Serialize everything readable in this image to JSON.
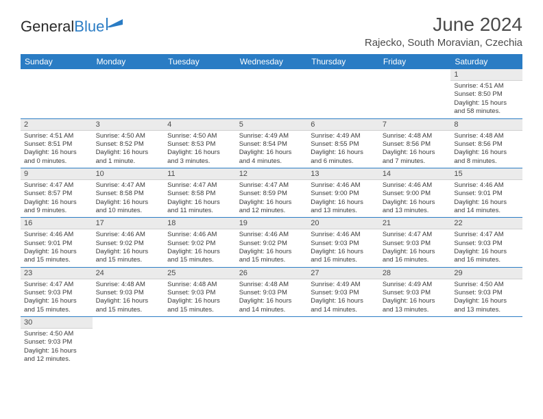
{
  "brand": {
    "general": "General",
    "blue": "Blue"
  },
  "title": "June 2024",
  "location": "Rajecko, South Moravian, Czechia",
  "colors": {
    "header_bg": "#2a7cc4",
    "header_text": "#ffffff",
    "daynum_bg": "#ebebeb",
    "text": "#3a3a3a",
    "border": "#2a7cc4"
  },
  "weekdays": [
    "Sunday",
    "Monday",
    "Tuesday",
    "Wednesday",
    "Thursday",
    "Friday",
    "Saturday"
  ],
  "weeks": [
    [
      null,
      null,
      null,
      null,
      null,
      null,
      {
        "n": "1",
        "sr": "4:51 AM",
        "ss": "8:50 PM",
        "dl": "15 hours and 58 minutes."
      }
    ],
    [
      {
        "n": "2",
        "sr": "4:51 AM",
        "ss": "8:51 PM",
        "dl": "16 hours and 0 minutes."
      },
      {
        "n": "3",
        "sr": "4:50 AM",
        "ss": "8:52 PM",
        "dl": "16 hours and 1 minute."
      },
      {
        "n": "4",
        "sr": "4:50 AM",
        "ss": "8:53 PM",
        "dl": "16 hours and 3 minutes."
      },
      {
        "n": "5",
        "sr": "4:49 AM",
        "ss": "8:54 PM",
        "dl": "16 hours and 4 minutes."
      },
      {
        "n": "6",
        "sr": "4:49 AM",
        "ss": "8:55 PM",
        "dl": "16 hours and 6 minutes."
      },
      {
        "n": "7",
        "sr": "4:48 AM",
        "ss": "8:56 PM",
        "dl": "16 hours and 7 minutes."
      },
      {
        "n": "8",
        "sr": "4:48 AM",
        "ss": "8:56 PM",
        "dl": "16 hours and 8 minutes."
      }
    ],
    [
      {
        "n": "9",
        "sr": "4:47 AM",
        "ss": "8:57 PM",
        "dl": "16 hours and 9 minutes."
      },
      {
        "n": "10",
        "sr": "4:47 AM",
        "ss": "8:58 PM",
        "dl": "16 hours and 10 minutes."
      },
      {
        "n": "11",
        "sr": "4:47 AM",
        "ss": "8:58 PM",
        "dl": "16 hours and 11 minutes."
      },
      {
        "n": "12",
        "sr": "4:47 AM",
        "ss": "8:59 PM",
        "dl": "16 hours and 12 minutes."
      },
      {
        "n": "13",
        "sr": "4:46 AM",
        "ss": "9:00 PM",
        "dl": "16 hours and 13 minutes."
      },
      {
        "n": "14",
        "sr": "4:46 AM",
        "ss": "9:00 PM",
        "dl": "16 hours and 13 minutes."
      },
      {
        "n": "15",
        "sr": "4:46 AM",
        "ss": "9:01 PM",
        "dl": "16 hours and 14 minutes."
      }
    ],
    [
      {
        "n": "16",
        "sr": "4:46 AM",
        "ss": "9:01 PM",
        "dl": "16 hours and 15 minutes."
      },
      {
        "n": "17",
        "sr": "4:46 AM",
        "ss": "9:02 PM",
        "dl": "16 hours and 15 minutes."
      },
      {
        "n": "18",
        "sr": "4:46 AM",
        "ss": "9:02 PM",
        "dl": "16 hours and 15 minutes."
      },
      {
        "n": "19",
        "sr": "4:46 AM",
        "ss": "9:02 PM",
        "dl": "16 hours and 15 minutes."
      },
      {
        "n": "20",
        "sr": "4:46 AM",
        "ss": "9:03 PM",
        "dl": "16 hours and 16 minutes."
      },
      {
        "n": "21",
        "sr": "4:47 AM",
        "ss": "9:03 PM",
        "dl": "16 hours and 16 minutes."
      },
      {
        "n": "22",
        "sr": "4:47 AM",
        "ss": "9:03 PM",
        "dl": "16 hours and 16 minutes."
      }
    ],
    [
      {
        "n": "23",
        "sr": "4:47 AM",
        "ss": "9:03 PM",
        "dl": "16 hours and 15 minutes."
      },
      {
        "n": "24",
        "sr": "4:48 AM",
        "ss": "9:03 PM",
        "dl": "16 hours and 15 minutes."
      },
      {
        "n": "25",
        "sr": "4:48 AM",
        "ss": "9:03 PM",
        "dl": "16 hours and 15 minutes."
      },
      {
        "n": "26",
        "sr": "4:48 AM",
        "ss": "9:03 PM",
        "dl": "16 hours and 14 minutes."
      },
      {
        "n": "27",
        "sr": "4:49 AM",
        "ss": "9:03 PM",
        "dl": "16 hours and 14 minutes."
      },
      {
        "n": "28",
        "sr": "4:49 AM",
        "ss": "9:03 PM",
        "dl": "16 hours and 13 minutes."
      },
      {
        "n": "29",
        "sr": "4:50 AM",
        "ss": "9:03 PM",
        "dl": "16 hours and 13 minutes."
      }
    ],
    [
      {
        "n": "30",
        "sr": "4:50 AM",
        "ss": "9:03 PM",
        "dl": "16 hours and 12 minutes."
      },
      null,
      null,
      null,
      null,
      null,
      null
    ]
  ],
  "labels": {
    "sunrise": "Sunrise:",
    "sunset": "Sunset:",
    "daylight": "Daylight:"
  }
}
